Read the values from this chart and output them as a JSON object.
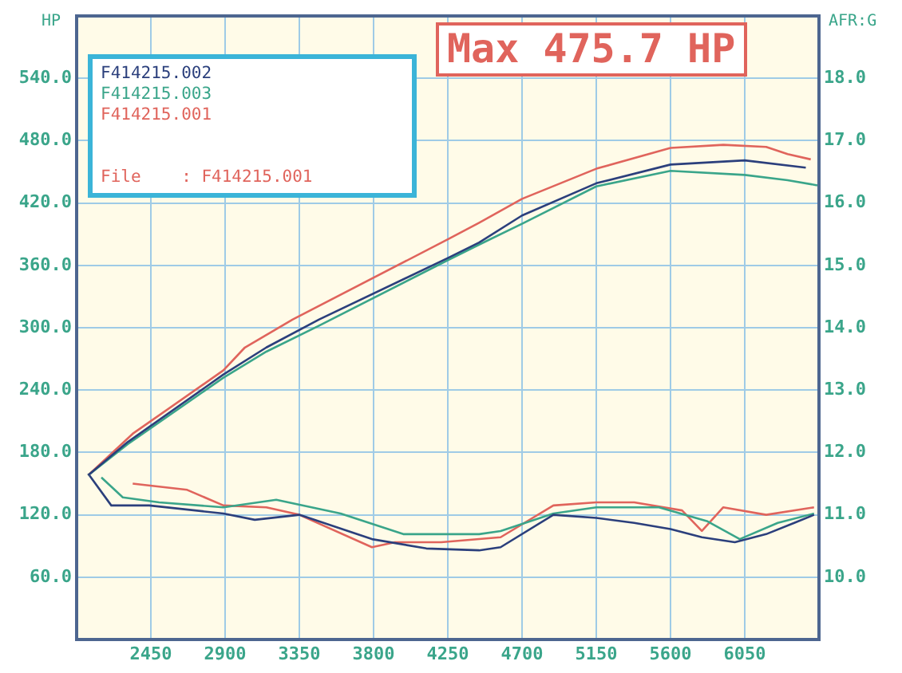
{
  "chart_data": {
    "type": "line",
    "ylabel": "HP",
    "y2label": "AFR:G",
    "annotations": [
      "Max 475.7 HP",
      "File    : F414215.001"
    ],
    "xlim": [
      2000,
      6500
    ],
    "xticks": [
      2450,
      2900,
      3350,
      3800,
      4250,
      4700,
      5150,
      5600,
      6050
    ],
    "ylim": [
      0,
      600
    ],
    "yticks": [
      {
        "value": 60,
        "label": "60.0"
      },
      {
        "value": 120,
        "label": "120.0"
      },
      {
        "value": 180,
        "label": "180.0"
      },
      {
        "value": 240,
        "label": "240.0"
      },
      {
        "value": 300,
        "label": "300.0"
      },
      {
        "value": 360,
        "label": "360.0"
      },
      {
        "value": 420,
        "label": "420.0"
      },
      {
        "value": 480,
        "label": "480.0"
      },
      {
        "value": 540,
        "label": "540.0"
      }
    ],
    "y2lim": [
      9,
      19
    ],
    "y2ticks": [
      {
        "value": 10,
        "label": "10.0"
      },
      {
        "value": 11,
        "label": "11.0"
      },
      {
        "value": 12,
        "label": "12.0"
      },
      {
        "value": 13,
        "label": "13.0"
      },
      {
        "value": 14,
        "label": "14.0"
      },
      {
        "value": 15,
        "label": "15.0"
      },
      {
        "value": 16,
        "label": "16.0"
      },
      {
        "value": 17,
        "label": "17.0"
      },
      {
        "value": 18,
        "label": "18.0"
      }
    ],
    "grid": true,
    "legend": "top left",
    "marker": "none",
    "series": [
      {
        "name": "F414215.002",
        "color": "#2b3f7c",
        "x": [
          2070,
          2310,
          2890,
          3150,
          3470,
          4250,
          4440,
          4700,
          5150,
          5600,
          6050,
          6420
        ],
        "values": [
          158,
          190,
          255,
          281,
          308,
          367,
          382,
          408,
          439,
          457,
          461,
          454
        ]
      },
      {
        "name": "F414215.003",
        "color": "#3aa58a",
        "x": [
          2070,
          2310,
          2890,
          3150,
          3470,
          4250,
          4440,
          4700,
          5150,
          5600,
          6050,
          6310,
          6490
        ],
        "values": [
          158,
          188,
          252,
          277,
          302,
          365,
          380,
          400,
          436,
          451,
          447,
          442,
          437
        ]
      },
      {
        "name": "F414215.001",
        "color": "#e0645c",
        "x": [
          2070,
          2340,
          2890,
          3020,
          3310,
          4250,
          4440,
          4700,
          5150,
          5600,
          5920,
          6180,
          6310,
          6450
        ],
        "values": [
          158,
          198,
          259,
          281,
          308,
          385,
          401,
          424,
          453,
          473,
          476,
          474,
          467,
          462
        ]
      },
      {
        "axis": "y2",
        "color": "#2b3f7c",
        "x": [
          2070,
          2210,
          2440,
          2890,
          3080,
          3350,
          3790,
          4120,
          4440,
          4570,
          4890,
          5150,
          5380,
          5600,
          5790,
          5990,
          6180,
          6350,
          6470
        ],
        "values": [
          11.66,
          11.15,
          11.15,
          11.02,
          10.92,
          11.0,
          10.61,
          10.46,
          10.43,
          10.48,
          11.0,
          10.95,
          10.87,
          10.77,
          10.64,
          10.56,
          10.69,
          10.87,
          11.0
        ]
      },
      {
        "axis": "y2",
        "color": "#3aa58a",
        "x": [
          2150,
          2280,
          2500,
          2890,
          3210,
          3600,
          3980,
          4440,
          4570,
          4890,
          5150,
          5530,
          5820,
          6020,
          6250,
          6470
        ],
        "values": [
          11.6,
          11.28,
          11.2,
          11.12,
          11.24,
          11.02,
          10.69,
          10.69,
          10.74,
          11.02,
          11.12,
          11.12,
          10.9,
          10.61,
          10.87,
          11.02
        ]
      },
      {
        "axis": "y2",
        "color": "#e0645c",
        "x": [
          2340,
          2670,
          2890,
          3150,
          3350,
          3790,
          3930,
          4210,
          4570,
          4890,
          5150,
          5380,
          5670,
          5790,
          5920,
          6180,
          6470
        ],
        "values": [
          11.5,
          11.4,
          11.15,
          11.12,
          11.0,
          10.48,
          10.56,
          10.56,
          10.64,
          11.15,
          11.2,
          11.2,
          11.07,
          10.74,
          11.12,
          11.0,
          11.12
        ]
      }
    ]
  }
}
